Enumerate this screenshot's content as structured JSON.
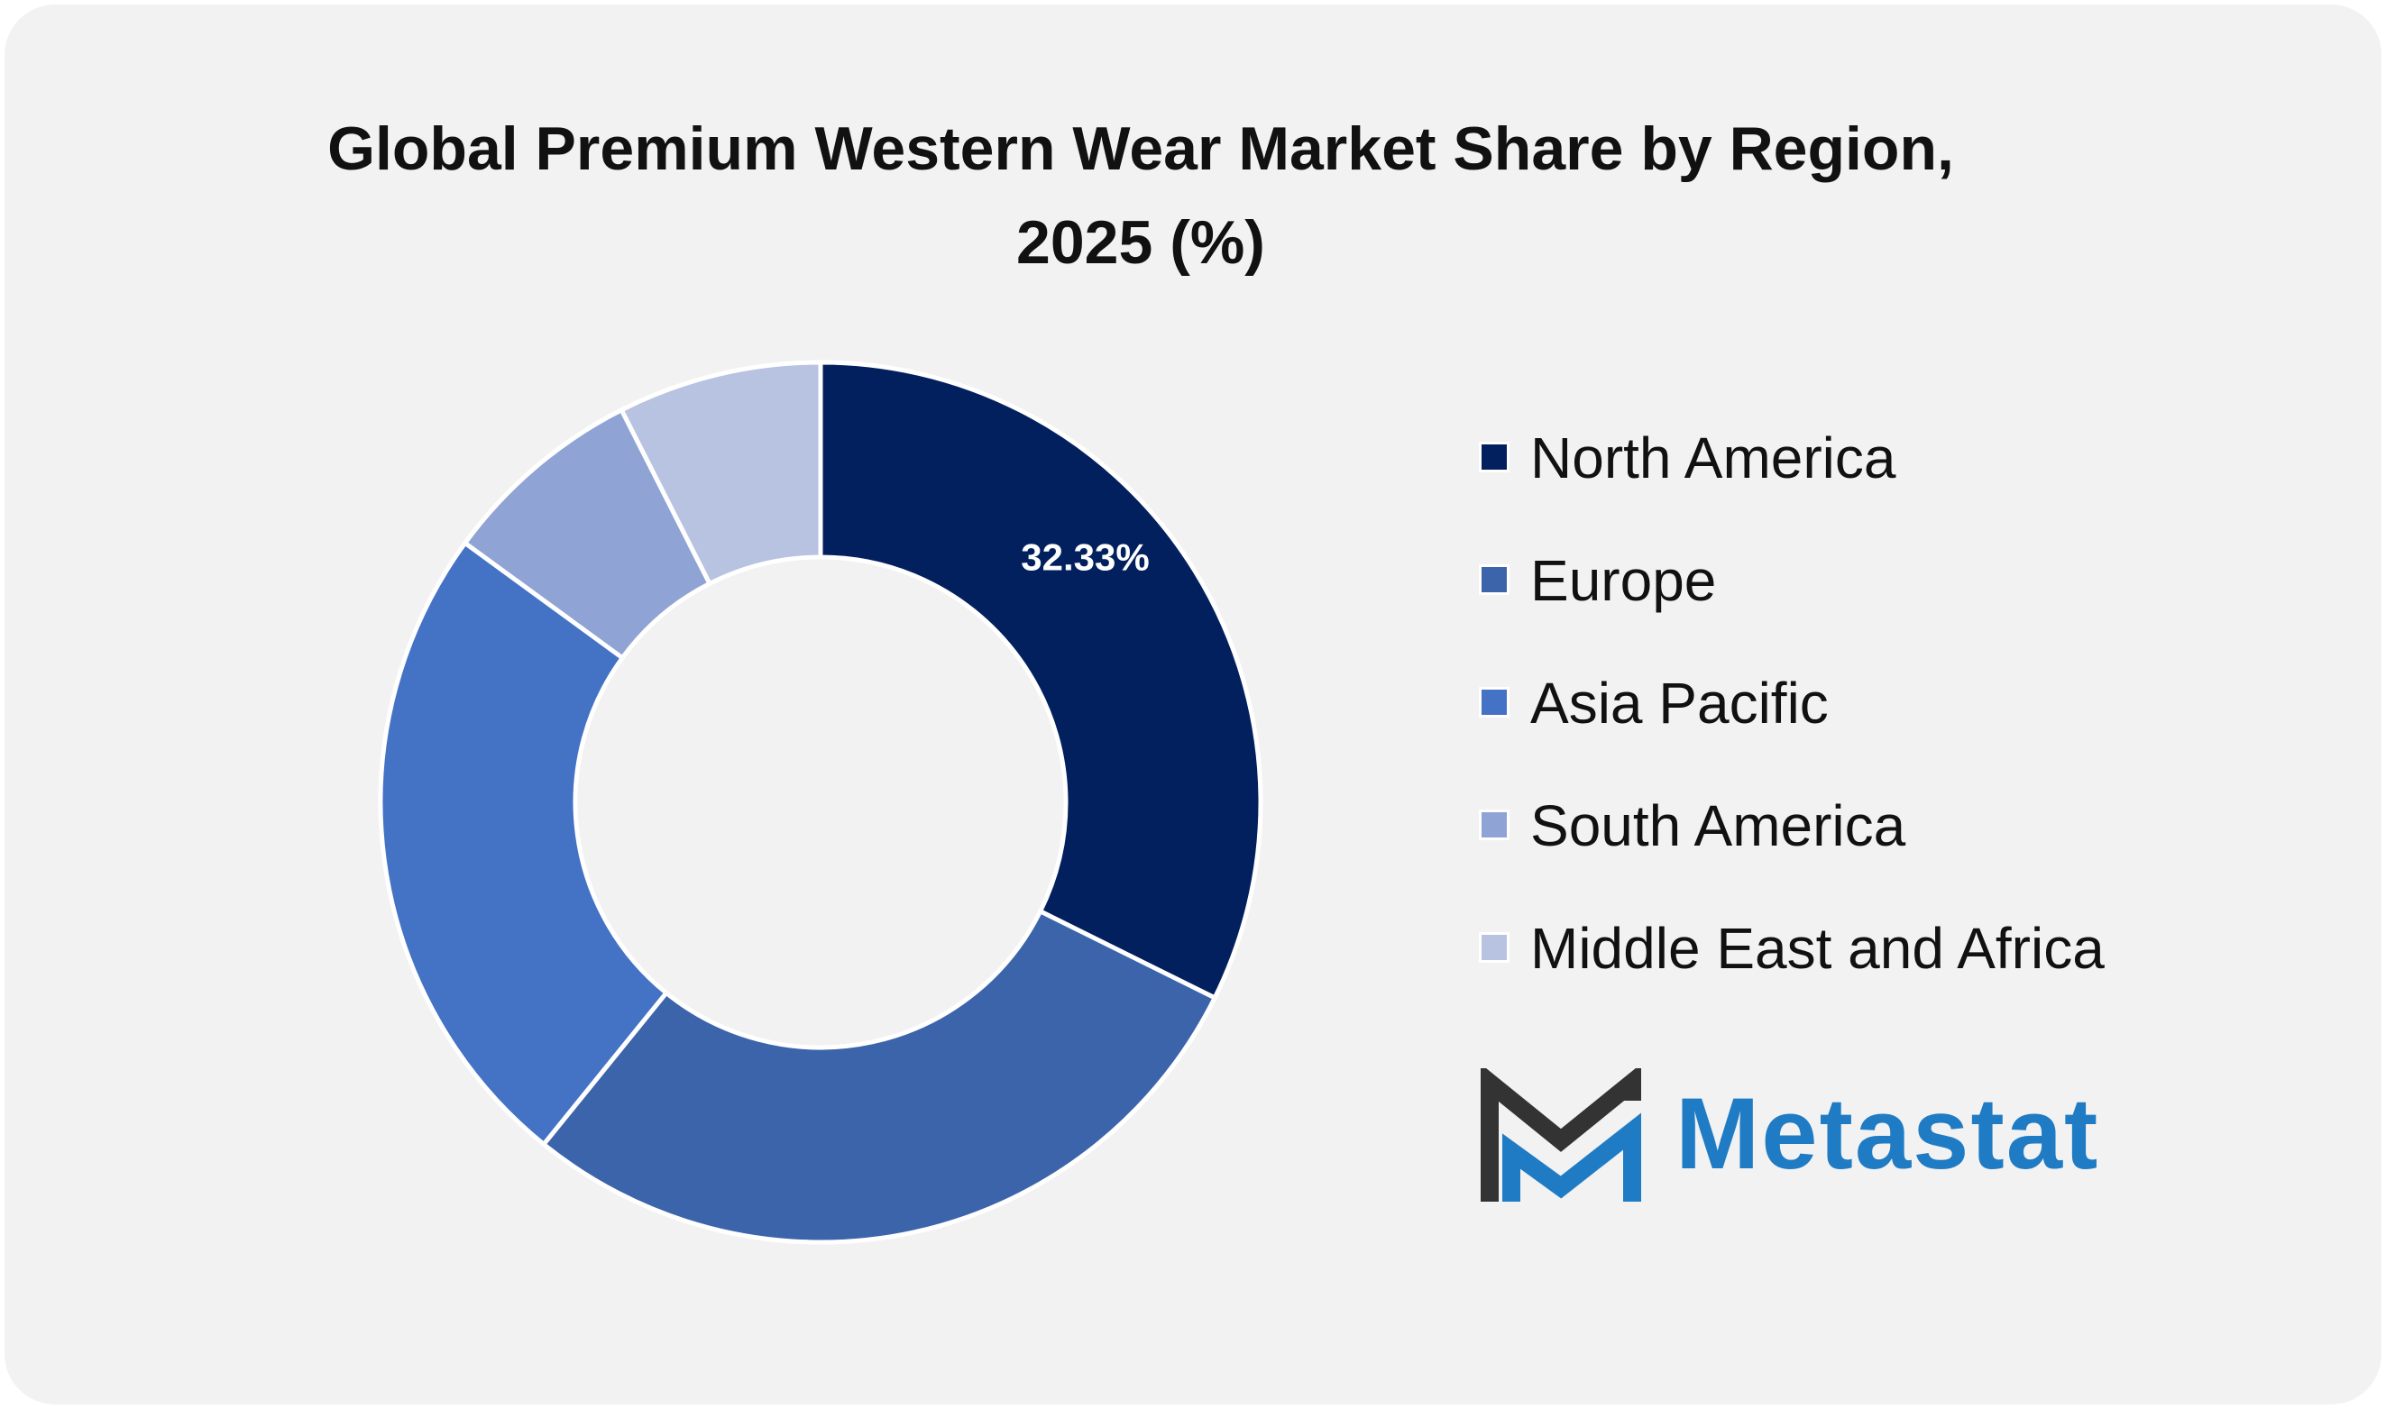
{
  "title_lines": [
    "Global Premium Western Wear Market Share by Region,",
    "2025 (%)"
  ],
  "chart_data": {
    "type": "pie",
    "title": "Global Premium Western Wear Market Share by Region, 2025 (%)",
    "donut": true,
    "categories": [
      "North America",
      "Europe",
      "Asia Pacific",
      "South America",
      "Middle East and Africa"
    ],
    "values": [
      32.33,
      28.5,
      24.2,
      7.5,
      7.47
    ],
    "colors": [
      "#03205e",
      "#3c64aa",
      "#4472c4",
      "#8fa3d4",
      "#b8c2e1"
    ],
    "data_labels": [
      "32.33%",
      "",
      "",
      "",
      ""
    ],
    "legend_position": "right"
  },
  "legend": [
    {
      "label": "North America",
      "color": "#03205e"
    },
    {
      "label": "Europe",
      "color": "#3c64aa"
    },
    {
      "label": "Asia Pacific",
      "color": "#4472c4"
    },
    {
      "label": "South America",
      "color": "#8fa3d4"
    },
    {
      "label": "Middle East and Africa",
      "color": "#b8c2e1"
    }
  ],
  "logo": {
    "text": "Metastat",
    "text_color": "#1f7bc4",
    "mark_dark_color": "#333333",
    "mark_blue_color": "#1f7bc4"
  }
}
